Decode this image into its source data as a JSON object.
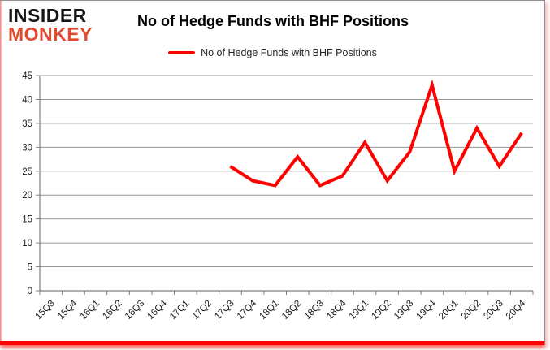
{
  "brand": {
    "line1": "INSIDER",
    "line2": "MONKEY",
    "line1_color": "#151515",
    "line2_color": "#e14a2e"
  },
  "header": {
    "title": "No of Hedge Funds with BHF Positions"
  },
  "legend": {
    "label": "No of Hedge Funds with BHF Positions",
    "swatch_color": "#ff0000"
  },
  "frame": {
    "accent_bar_color": "#fb0300",
    "border_color": "#8f8f8f"
  },
  "chart_data": {
    "type": "line",
    "title": "No of Hedge Funds with BHF Positions",
    "categories": [
      "15Q3",
      "15Q4",
      "16Q1",
      "16Q2",
      "16Q3",
      "16Q4",
      "17Q1",
      "17Q2",
      "17Q3",
      "17Q4",
      "18Q1",
      "18Q2",
      "18Q3",
      "18Q4",
      "19Q1",
      "19Q2",
      "19Q3",
      "19Q4",
      "20Q1",
      "20Q2",
      "20Q3",
      "20Q4"
    ],
    "series": [
      {
        "name": "No of Hedge Funds with BHF Positions",
        "color": "#ff0000",
        "values": [
          null,
          null,
          null,
          null,
          null,
          null,
          null,
          null,
          26,
          23,
          22,
          28,
          22,
          24,
          31,
          23,
          29,
          43,
          25,
          34,
          26,
          33
        ]
      }
    ],
    "xlabel": "",
    "ylabel": "",
    "ylim": [
      0,
      45
    ],
    "ytick_interval": 5,
    "grid": true,
    "legend_position": "top",
    "gridline_color": "#969696",
    "axis_color": "#808080",
    "tick_label_color": "#1a1a1a"
  }
}
